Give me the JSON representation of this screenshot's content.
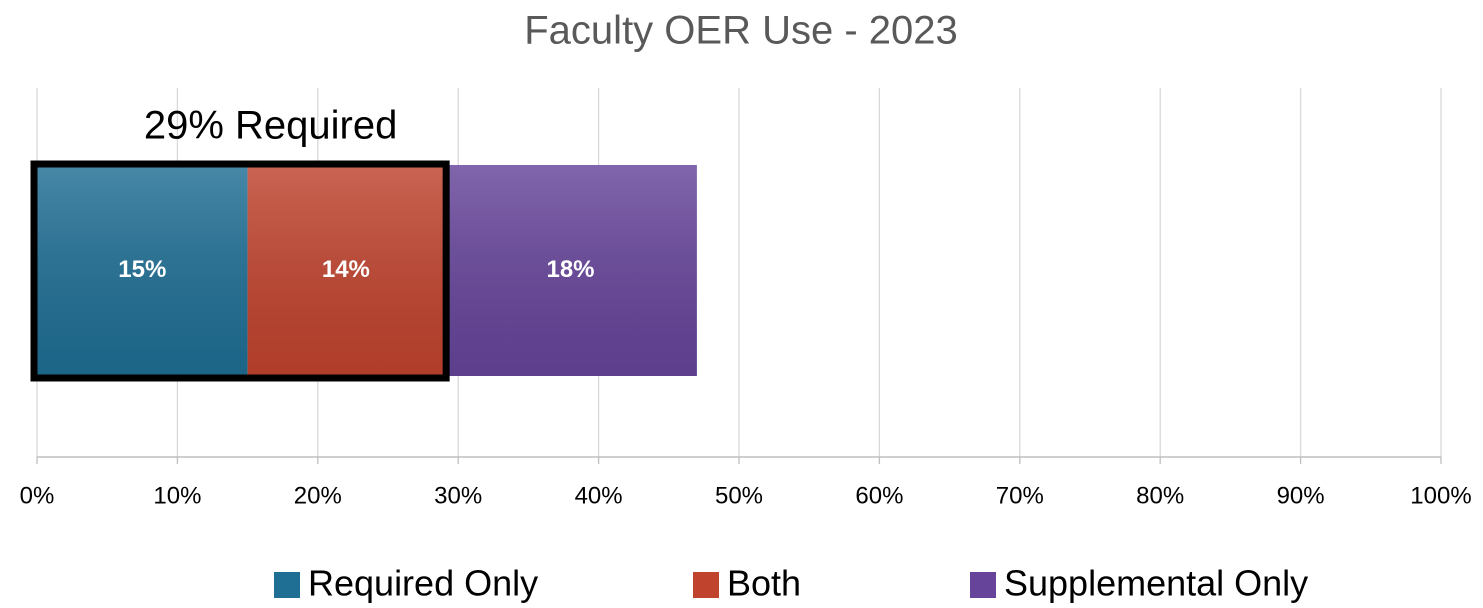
{
  "chart_data": {
    "type": "stacked-barh",
    "title": "Faculty OER Use - 2023",
    "categories": [
      null
    ],
    "series": [
      {
        "name": "Required Only",
        "color": "#1f6e94",
        "values": [
          15
        ],
        "value_labels": [
          "15%"
        ]
      },
      {
        "name": "Both",
        "color": "#c0432e",
        "values": [
          14
        ],
        "value_labels": [
          "14%"
        ]
      },
      {
        "name": "Supplemental Only",
        "color": "#66449a",
        "values": [
          18
        ],
        "value_labels": [
          "18%"
        ]
      }
    ],
    "annotation": {
      "text": "29% Required",
      "value": 29
    },
    "xlim": [
      0,
      100
    ],
    "xticks": [
      {
        "value": 0,
        "label": "0%"
      },
      {
        "value": 10,
        "label": "10%"
      },
      {
        "value": 20,
        "label": "20%"
      },
      {
        "value": 30,
        "label": "30%"
      },
      {
        "value": 40,
        "label": "40%"
      },
      {
        "value": 50,
        "label": "50%"
      },
      {
        "value": 60,
        "label": "60%"
      },
      {
        "value": 70,
        "label": "70%"
      },
      {
        "value": 80,
        "label": "80%"
      },
      {
        "value": 90,
        "label": "90%"
      },
      {
        "value": 100,
        "label": "100%"
      }
    ],
    "grid": true,
    "legend": "bottom"
  }
}
